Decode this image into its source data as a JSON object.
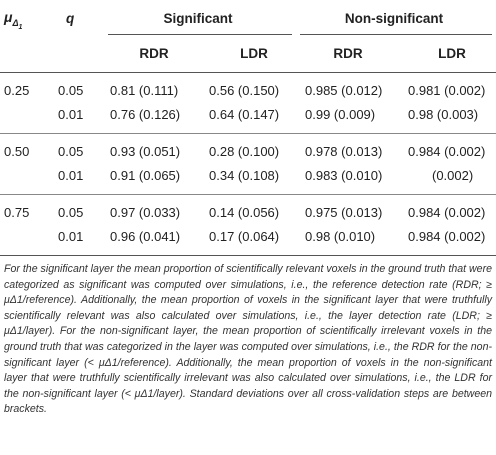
{
  "header": {
    "col_mu": "μΔ1",
    "col_q": "q",
    "group_significant": "Significant",
    "group_nonsignificant": "Non-significant",
    "sub_rdr_sig": "RDR",
    "sub_ldr_sig": "LDR",
    "sub_rdr_non": "RDR",
    "sub_ldr_non": "LDR"
  },
  "rows": [
    {
      "mu": "0.25",
      "q": "0.05",
      "sig_rdr": "0.81 (0.111)",
      "sig_ldr": "0.56 (0.150)",
      "non_rdr": "0.985 (0.012)",
      "non_ldr": "0.981 (0.002)"
    },
    {
      "mu": "",
      "q": "0.01",
      "sig_rdr": "0.76 (0.126)",
      "sig_ldr": "0.64 (0.147)",
      "non_rdr": "0.99 (0.009)",
      "non_ldr": "0.98 (0.003)"
    },
    {
      "mu": "0.50",
      "q": "0.05",
      "sig_rdr": "0.93 (0.051)",
      "sig_ldr": "0.28 (0.100)",
      "non_rdr": "0.978 (0.013)",
      "non_ldr": "0.984 (0.002)"
    },
    {
      "mu": "",
      "q": "0.01",
      "sig_rdr": "0.91 (0.065)",
      "sig_ldr": "0.34 (0.108)",
      "non_rdr": "0.983 (0.010)",
      "non_ldr": "(0.002)"
    },
    {
      "mu": "0.75",
      "q": "0.05",
      "sig_rdr": "0.97 (0.033)",
      "sig_ldr": "0.14 (0.056)",
      "non_rdr": "0.975 (0.013)",
      "non_ldr": "0.984 (0.002)"
    },
    {
      "mu": "",
      "q": "0.01",
      "sig_rdr": "0.96 (0.041)",
      "sig_ldr": "0.17 (0.064)",
      "non_rdr": "0.98 (0.010)",
      "non_ldr": "0.984 (0.002)"
    }
  ],
  "footnote": "For the significant layer the mean proportion of scientifically relevant voxels in the ground truth that were categorized as significant was computed over simulations, i.e., the reference detection rate (RDR; ≥ μΔ1/reference). Additionally, the mean proportion of voxels in the significant layer that were truthfully scientifically relevant was also calculated over simulations, i.e., the layer detection rate (LDR; ≥ μΔ1/layer). For the non-significant layer, the mean proportion of scientifically irrelevant voxels in the ground truth that was categorized in the layer was computed over simulations, i.e., the RDR for the non-significant layer (< μΔ1/reference). Additionally, the mean proportion of voxels in the non-significant layer that were truthfully scientifically irrelevant was also calculated over simulations, i.e., the LDR for the non-significant layer (< μΔ1/layer). Standard deviations over all cross-validation steps are between brackets."
}
